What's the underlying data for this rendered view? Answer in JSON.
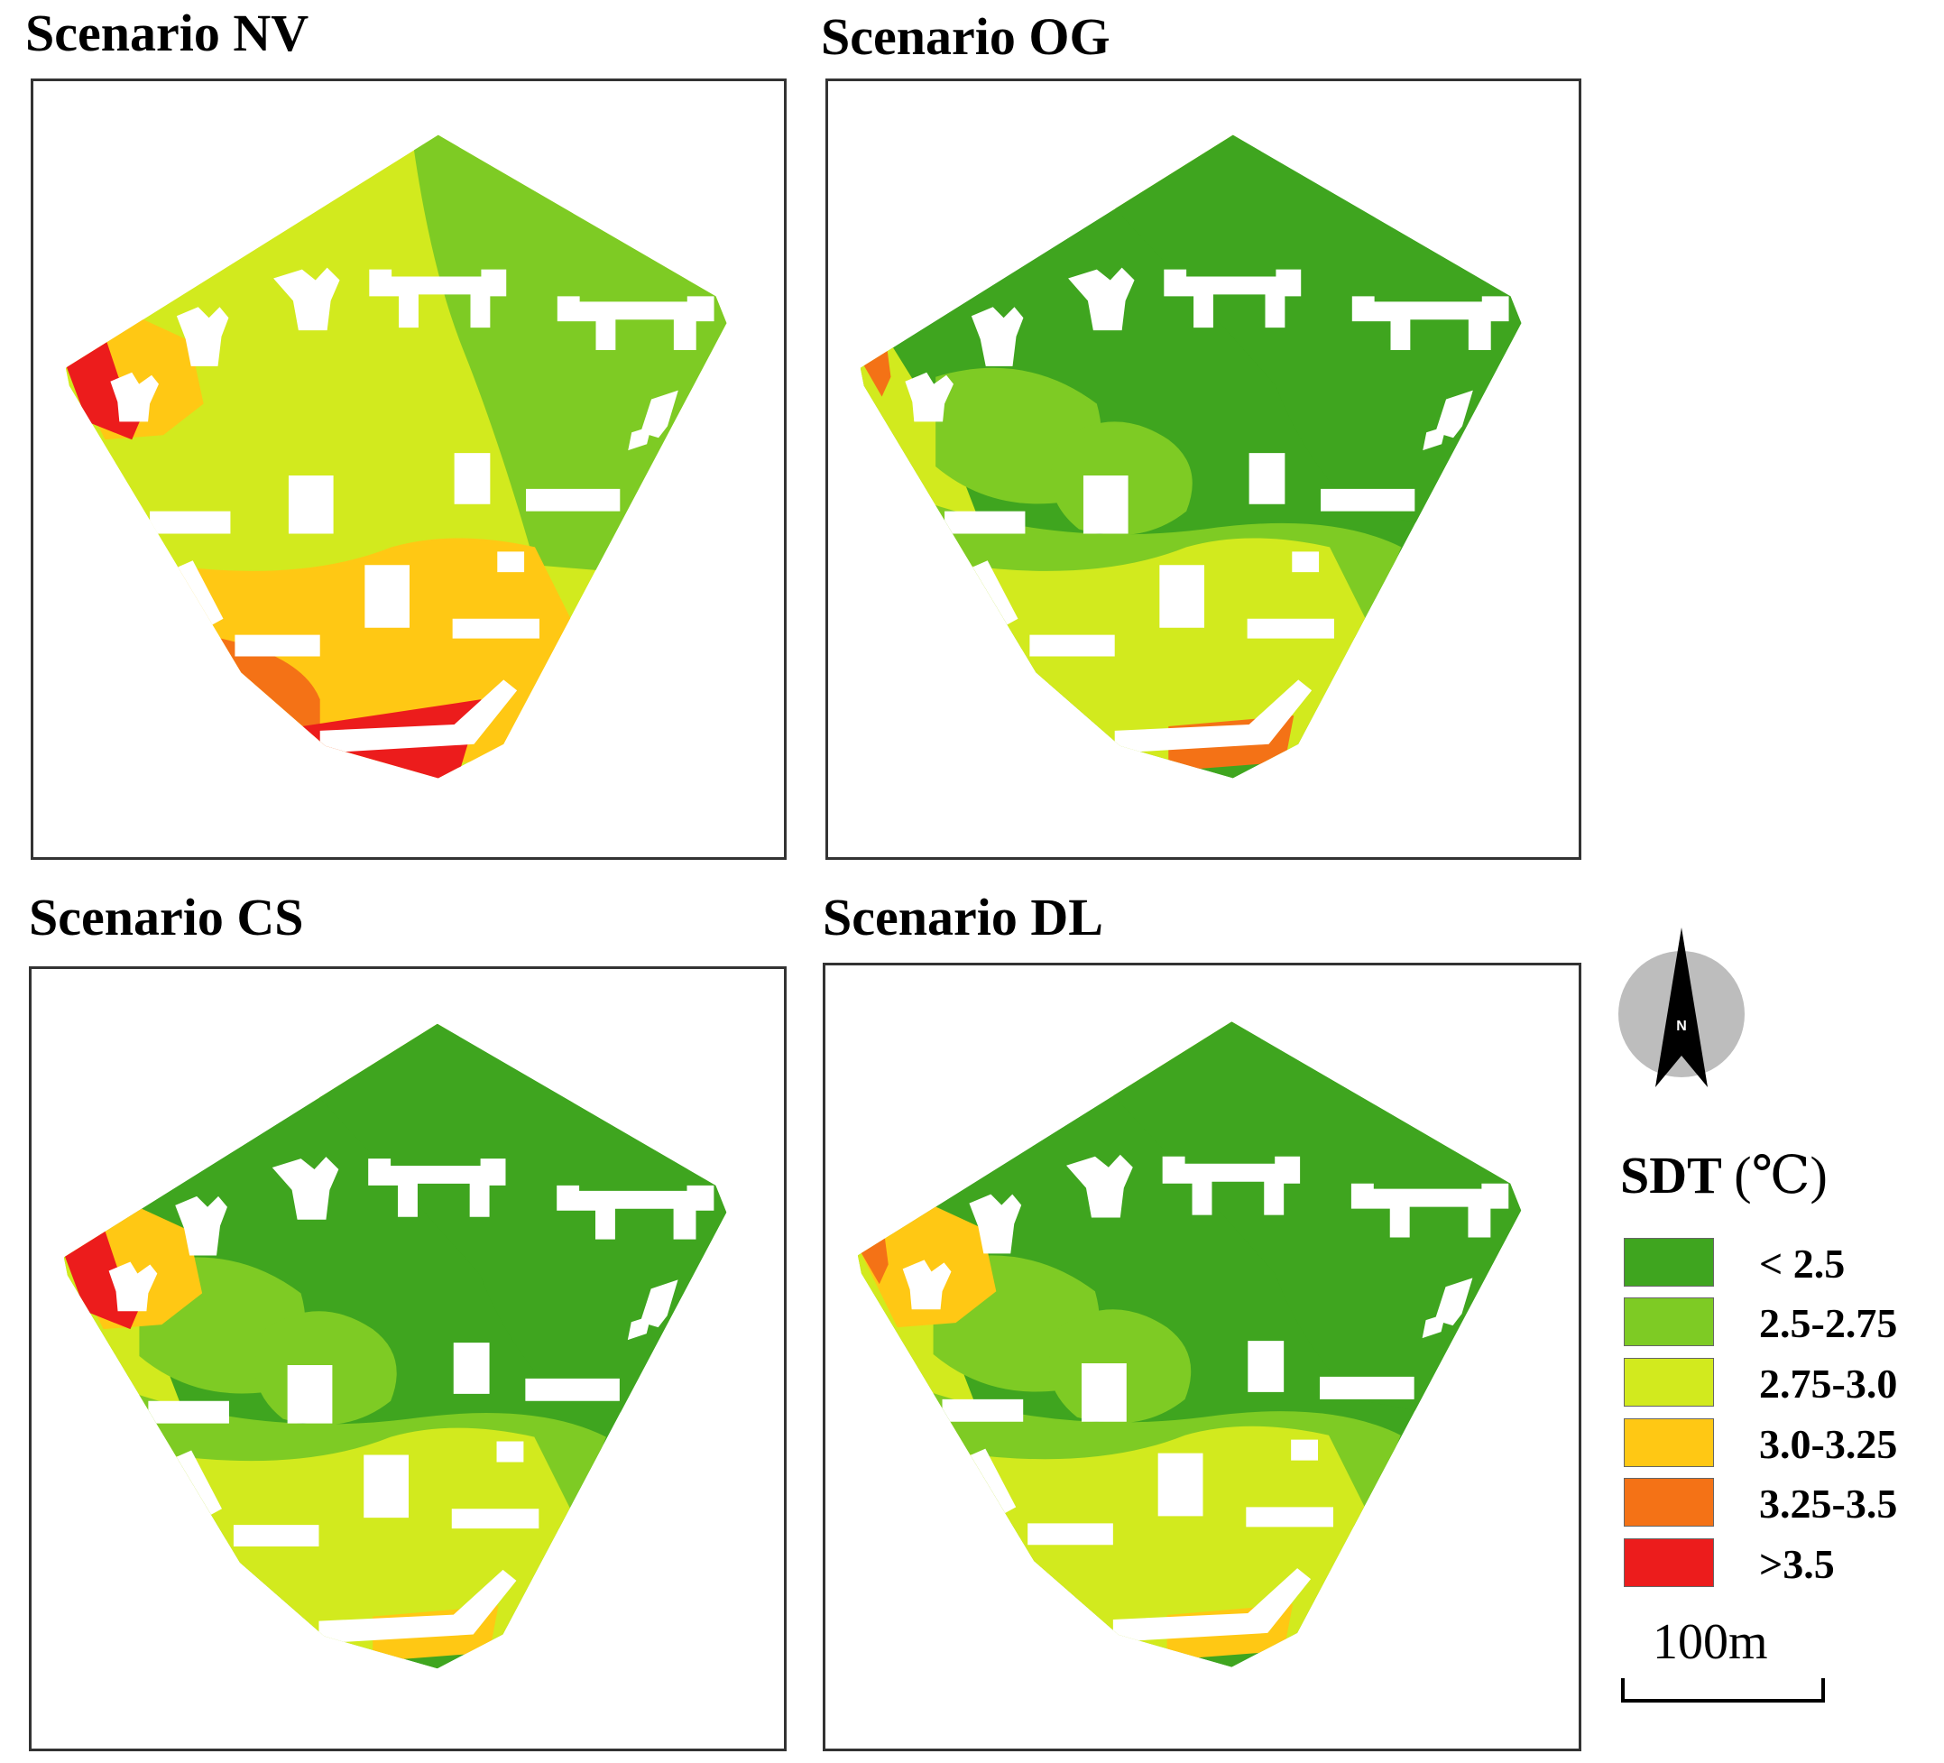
{
  "panels": [
    {
      "title": "Scenario NV",
      "scheme": "nv"
    },
    {
      "title": "Scenario OG",
      "scheme": "og"
    },
    {
      "title": "Scenario CS",
      "scheme": "cs"
    },
    {
      "title": "Scenario DL",
      "scheme": "dl"
    }
  ],
  "legend": {
    "title": "SDT",
    "unit": "(℃)",
    "classes": [
      {
        "label": "< 2.5",
        "color": "#3fa51f"
      },
      {
        "label": "2.5-2.75",
        "color": "#7ecb24"
      },
      {
        "label": "2.75-3.0",
        "color": "#d2ea1e"
      },
      {
        "label": "3.0-3.25",
        "color": "#ffc814"
      },
      {
        "label": "3.25-3.5",
        "color": "#f47216"
      },
      {
        "label": ">3.5",
        "color": "#ec1c1c"
      }
    ]
  },
  "north_arrow": {
    "label": "N"
  },
  "scale_bar": {
    "label": "100m"
  }
}
